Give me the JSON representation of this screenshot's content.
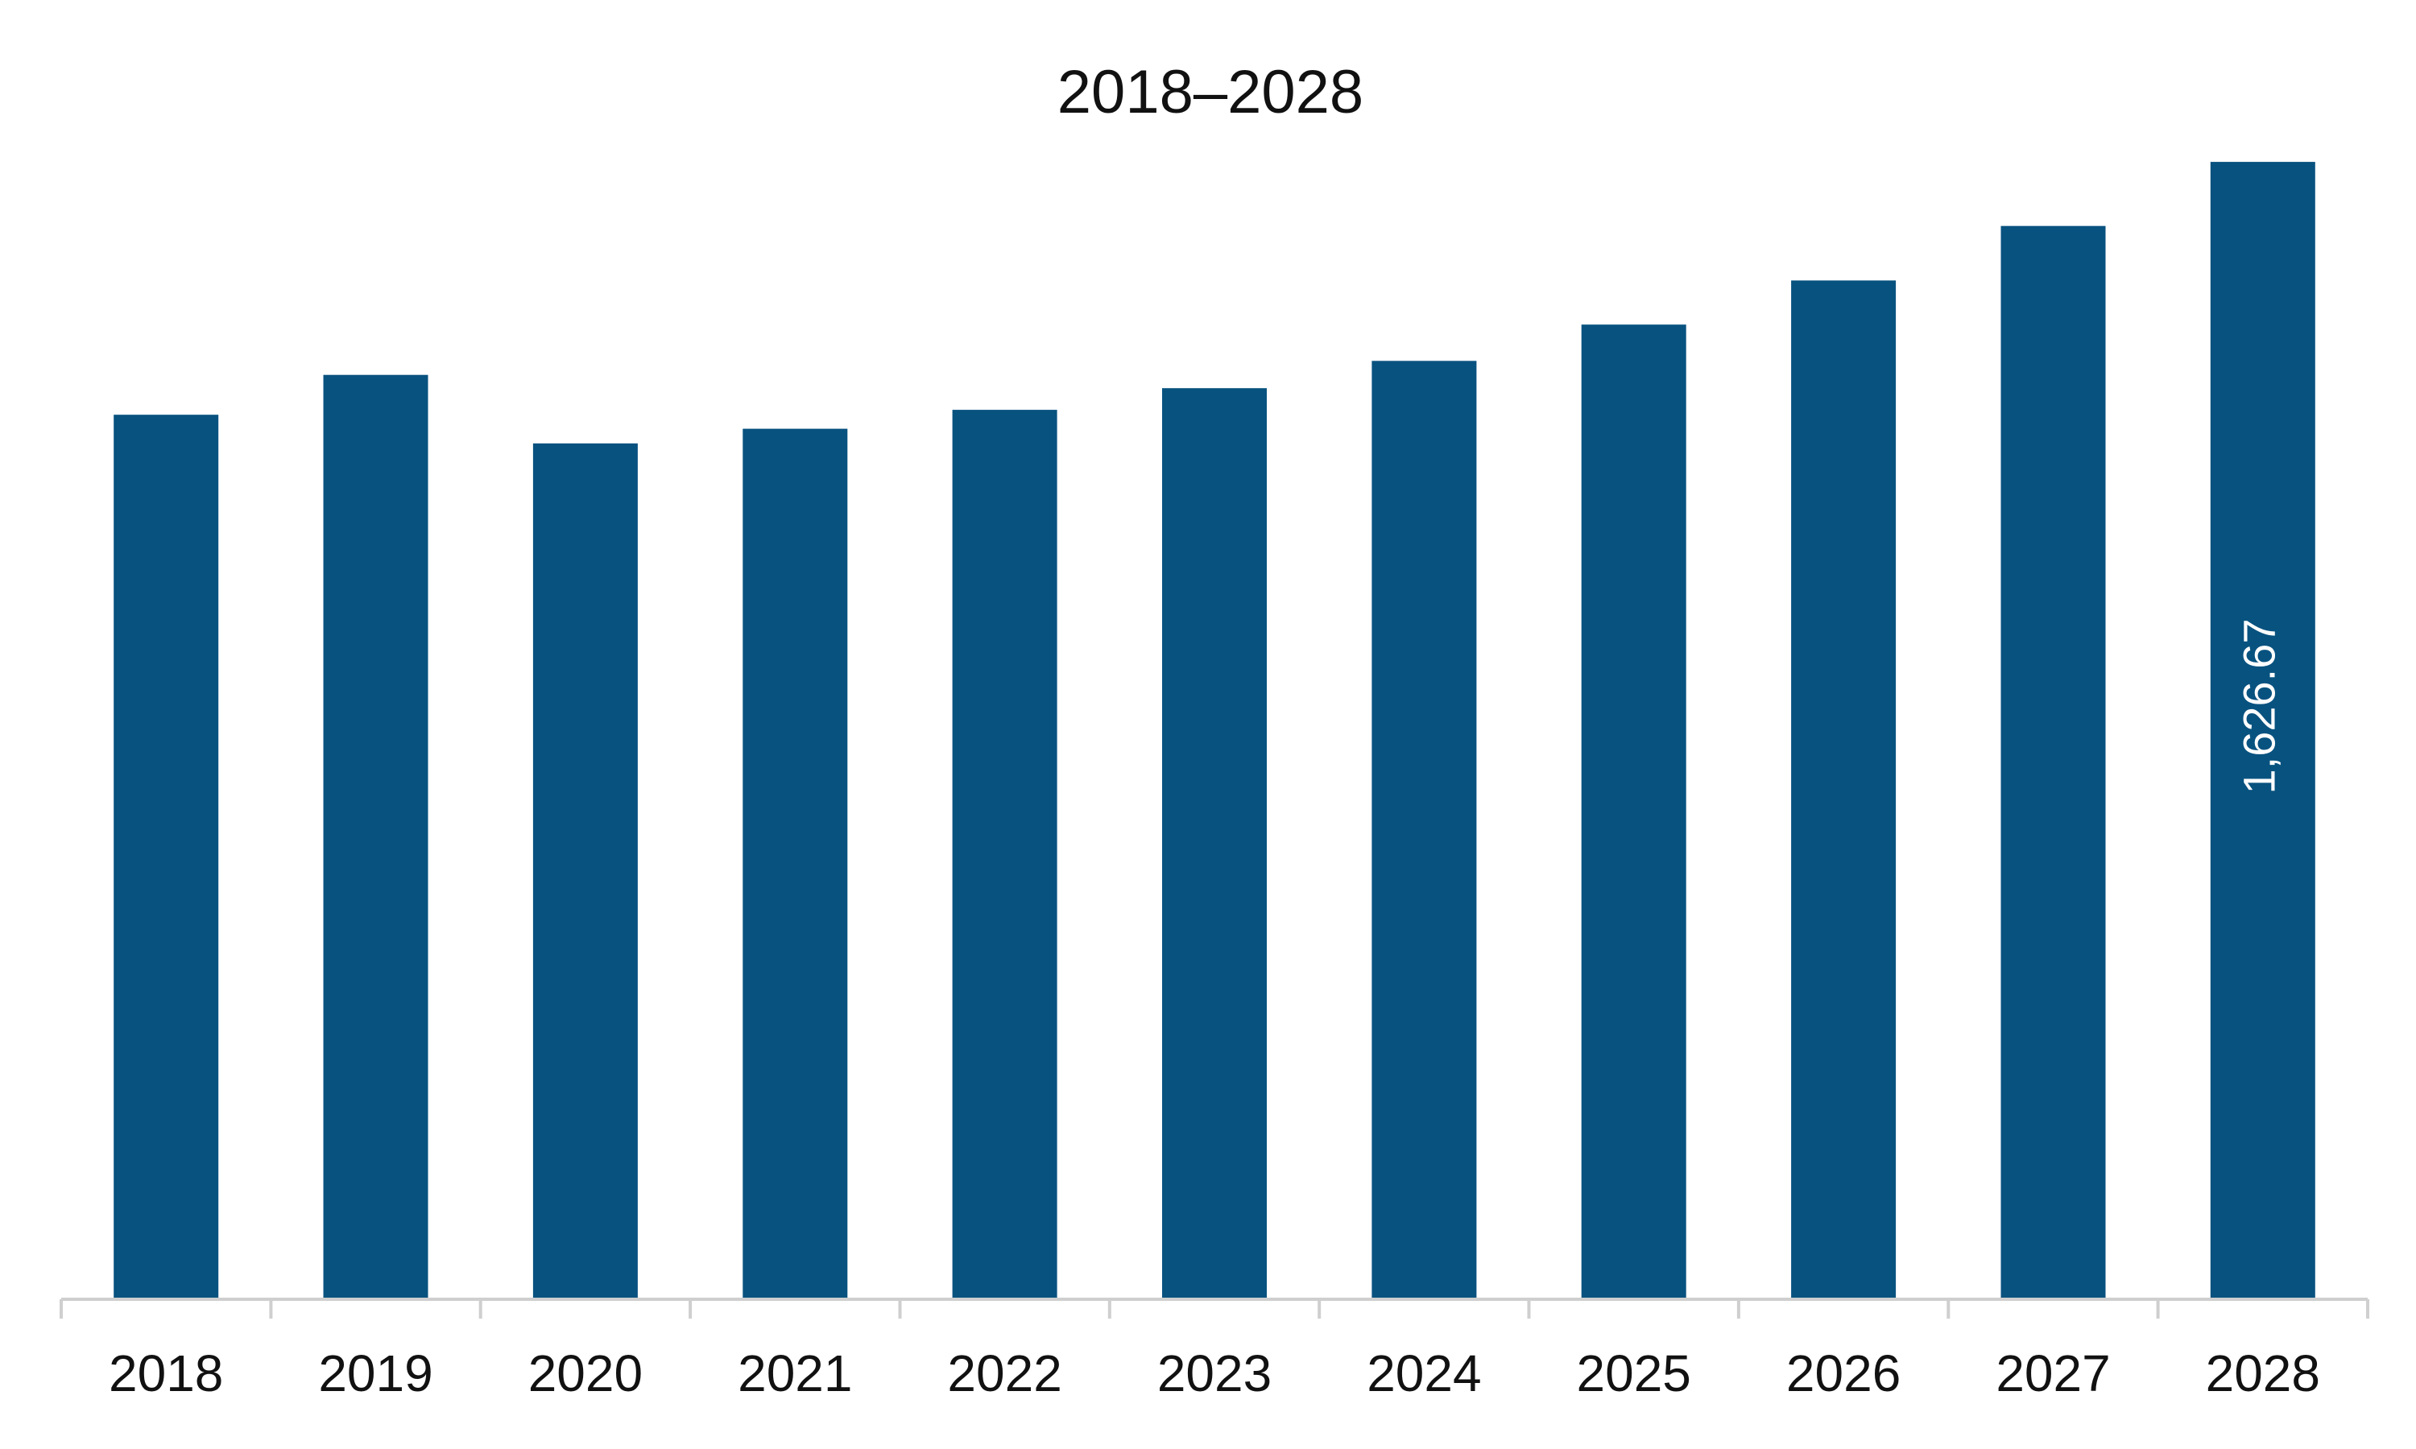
{
  "chart_data": {
    "type": "bar",
    "title": "2018–2028",
    "xlabel": "",
    "ylabel": "",
    "categories": [
      "2018",
      "2019",
      "2020",
      "2021",
      "2022",
      "2023",
      "2024",
      "2025",
      "2026",
      "2027",
      "2028"
    ],
    "values": [
      1265,
      1322,
      1224,
      1245,
      1272,
      1303,
      1342,
      1394,
      1457,
      1535,
      1626.67
    ],
    "data_labels": [
      "",
      "",
      "",
      "",
      "",
      "",
      "",
      "",
      "",
      "",
      "1,626.67"
    ],
    "ylim": [
      0,
      1720
    ],
    "grid": false,
    "legend": "none",
    "bar_color": "#08527f",
    "axis_color": "#cfcfcf"
  }
}
